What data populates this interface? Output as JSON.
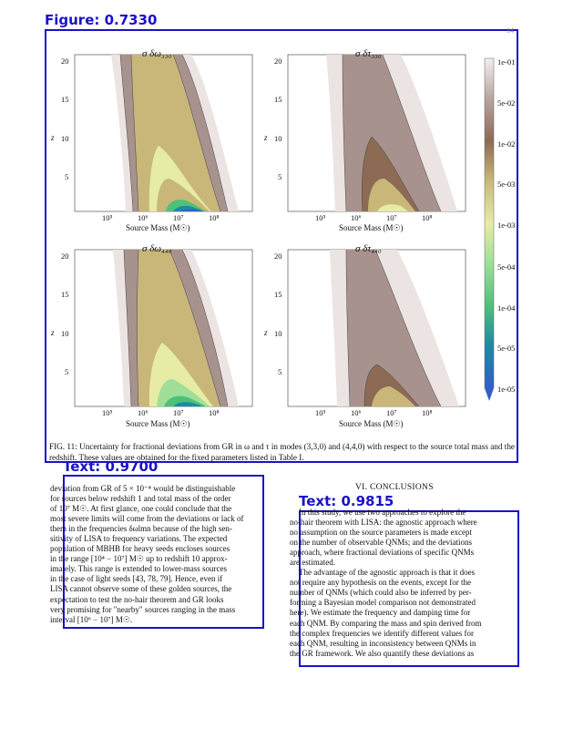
{
  "detections": {
    "figure": {
      "label": "Figure: 0.7330"
    },
    "text_left": {
      "label": "Text: 0.9700"
    },
    "text_right": {
      "label": "Text: 0.9815"
    }
  },
  "page_number": "14",
  "figure": {
    "panels": [
      {
        "title": "σ δω₃₃₀",
        "ylabel": "z",
        "xlabel": "Source Mass (M☉)"
      },
      {
        "title": "σ δτ₃₃₀",
        "ylabel": "z",
        "xlabel": "Source Mass (M☉)"
      },
      {
        "title": "σ δω₄₄₀",
        "ylabel": "z",
        "xlabel": "Source Mass (M☉)"
      },
      {
        "title": "σ δτ₄₄₀",
        "ylabel": "z",
        "xlabel": "Source Mass (M☉)"
      }
    ],
    "y_ticks": [
      "20",
      "15",
      "10",
      "5"
    ],
    "x_ticks": [
      "10⁵",
      "10⁶",
      "10⁷",
      "10⁸"
    ],
    "colorbar_ticks": [
      "1e-01",
      "5e-02",
      "1e-02",
      "5e-03",
      "1e-03",
      "5e-04",
      "1e-04",
      "5e-05",
      "1e-05"
    ],
    "colors": {
      "lightest": "#ece4e2",
      "mauve": "#a8928d",
      "brown": "#8c6a54",
      "khaki": "#c9b779",
      "yellow": "#e6eca4",
      "lightgreen": "#9fdf9a",
      "green": "#4fc07a",
      "teal": "#1e8aa2",
      "blue": "#2f5fc8"
    }
  },
  "caption": "FIG. 11: Uncertainty for fractional deviations from GR in ω and τ in modes (3,3,0) and (4,4,0) with respect to the source total mass and the redshift. These values are obtained for the fixed parameters listed in Table I.",
  "left_column": {
    "lines": [
      "deviation from GR of 5 × 10⁻⁴ would be distinguishable",
      "for sources below redshift 1 and total mass of the order",
      "of 10⁷ M☉. At first glance, one could conclude that the",
      "most severe limits will come from the deviations or lack of",
      "them in the frequencies δωlmn because of the high sen-",
      "sitivity of LISA to frequency variations. The expected",
      "population of MBHB for heavy seeds encloses sources",
      "in the range [10⁴ − 10⁷] M☉ up to redshift 10 approx-",
      "imately. This range is extended to lower-mass sources",
      "in the case of light seeds [43, 78, 79]. Hence, even if",
      "LISA cannot observe some of these golden sources, the",
      "expectation to test the no-hair theorem and GR looks",
      "very promising for \"nearby\" sources ranging in the mass",
      "interval [10⁶ − 10⁷] M☉."
    ]
  },
  "right_column": {
    "heading": "VI.   CONCLUSIONS",
    "lines": [
      "In this study, we use two approaches to explore the",
      "no-hair theorem with LISA: the agnostic approach where",
      "no assumption on the source parameters is made except",
      "on the number of observable QNMs; and the deviations",
      "approach, where fractional deviations of specific QNMs",
      "are estimated.",
      "The advantage of the agnostic approach is that it does",
      "not require any hypothesis on the events, except for the",
      "number of QNMs (which could also be inferred by per-",
      "forming a Bayesian model comparison not demonstrated",
      "here). We estimate the frequency and damping time for",
      "each QNM. By comparing the mass and spin derived from",
      "the complex frequencies we identify different values for",
      "each QNM, resulting in inconsistency between QNMs in",
      "the GR framework. We also quantify these deviations as"
    ]
  }
}
